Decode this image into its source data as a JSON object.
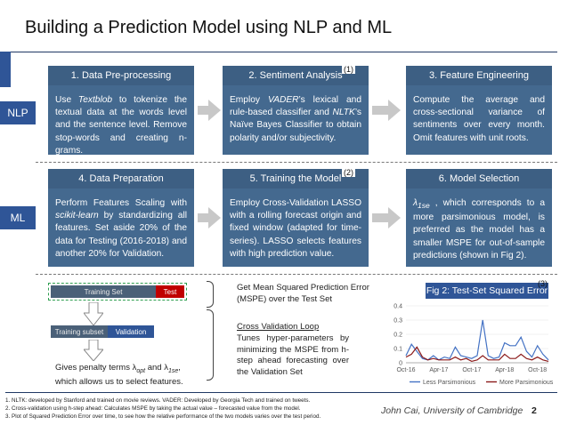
{
  "title": "Building a Prediction Model using NLP and ML",
  "rows": {
    "nlp": "NLP",
    "ml": "ML"
  },
  "boxes": [
    {
      "head": "1. Data Pre-processing",
      "ref": "",
      "body": "Use <i>Textblob</i> to tokenize the textual data at the words level and the sentence level. Remove stop-words and creating n-grams."
    },
    {
      "head": "2. Sentiment Analysis",
      "ref": "(1)",
      "body": "Employ <i>VADER</i>’s lexical and rule-based classifier and <i>NLTK</i>’s Naïve Bayes Classifier to obtain polarity and/or subjectivity."
    },
    {
      "head": "3. Feature Engineering",
      "ref": "",
      "body": "Compute the average and cross-sectional variance of sentiments over every month. Omit features with unit roots."
    },
    {
      "head": "4. Data Preparation",
      "ref": "",
      "body": "Perform Features Scaling with <i>scikit-learn</i> by standardizing all features. Set aside 20% of the data for Testing (2016-2018) and another 20% for Validation."
    },
    {
      "head": "5. Training the Model",
      "ref": "(2)",
      "body": "Employ Cross-Validation LASSO with a rolling forecast origin and fixed window (adapted for time-series). LASSO selects features with high prediction value."
    },
    {
      "head": "6. Model Selection",
      "ref": "",
      "body": "<i>λ<sub>1se</sub></i> , which corresponds to a more parsimonious model, is preferred as the model has a smaller MSPE for out-of-sample predictions (shown in Fig 2)."
    }
  ],
  "diagram": {
    "training_set": "Training Set",
    "test": "Test",
    "training_subset": "Training subset",
    "validation": "Validation",
    "penalty_line1": "Gives penalty terms λ",
    "penalty_sub1": "opt",
    "penalty_and": " and λ",
    "penalty_sub2": "1se",
    "penalty_line2": "which allows us to select features.",
    "mspe_text": "Get Mean Squared Prediction Error (MSPE) over the Test Set",
    "cv_title": "Cross Validation Loop",
    "cv_text": "Tunes hyper-parameters by minimizing the MSPE from h-step ahead forecasting over the Validation Set"
  },
  "chart_data": {
    "type": "line",
    "title": "Fig 2: Test-Set Squared Error",
    "ref": "(3)",
    "x": [
      "2016-10",
      "2016-11",
      "2016-12",
      "2017-01",
      "2017-02",
      "2017-03",
      "2017-04",
      "2017-05",
      "2017-06",
      "2017-07",
      "2017-08",
      "2017-09",
      "2017-10",
      "2017-11",
      "2017-12",
      "2018-01",
      "2018-02",
      "2018-03",
      "2018-04",
      "2018-05",
      "2018-06",
      "2018-07",
      "2018-08",
      "2018-09",
      "2018-10",
      "2018-11",
      "2018-12"
    ],
    "xticks": [
      "Oct-16",
      "Apr-17",
      "Oct-17",
      "Apr-18",
      "Oct-18"
    ],
    "yticks": [
      "0",
      "0.1",
      "0.2",
      "0.3",
      "0.4"
    ],
    "ylim": [
      0,
      0.4
    ],
    "series": [
      {
        "name": "Less Parsimonious",
        "color": "#4472c4",
        "values": [
          0.05,
          0.13,
          0.08,
          0.03,
          0.02,
          0.05,
          0.02,
          0.04,
          0.03,
          0.11,
          0.05,
          0.04,
          0.03,
          0.05,
          0.3,
          0.05,
          0.03,
          0.04,
          0.14,
          0.12,
          0.12,
          0.18,
          0.08,
          0.04,
          0.12,
          0.06,
          0.02
        ]
      },
      {
        "name": "More Parsimonious",
        "color": "#8b1a1a",
        "values": [
          0.04,
          0.06,
          0.11,
          0.04,
          0.02,
          0.03,
          0.02,
          0.02,
          0.02,
          0.04,
          0.02,
          0.03,
          0.01,
          0.02,
          0.05,
          0.02,
          0.02,
          0.02,
          0.06,
          0.03,
          0.03,
          0.06,
          0.03,
          0.02,
          0.04,
          0.02,
          0.01
        ]
      }
    ]
  },
  "footnotes": [
    "1.  NLTK: developed by Stanford and trained on movie reviews. VADER: Developed by Georgia Tech and trained on tweets.",
    "2.  Cross-validation using h-step ahead: Calculates MSPE by taking the actual value – forecasted value from the model.",
    "3.  Plot of Squared Prediction Error over time, to see how the relative performance of the two models varies over the test period."
  ],
  "author": "John Cai, University of Cambridge",
  "page_number": "2",
  "colors": {
    "accent": "#2f5597",
    "box": "#44698f",
    "training": "#4a6078",
    "test": "#c00000",
    "validation": "#2f5597"
  }
}
